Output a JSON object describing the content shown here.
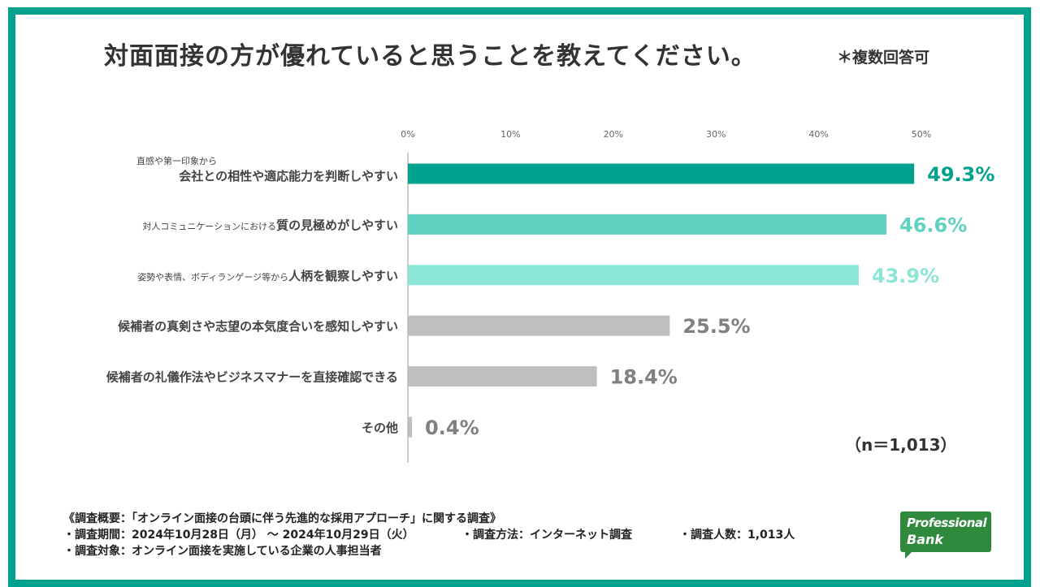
{
  "title": "対面面接の方が優れていると思うことを教えてください。",
  "note": "＊複数回答可",
  "sample_size": "（n＝1,013）",
  "chart_data": {
    "type": "bar",
    "orientation": "horizontal",
    "categories": [
      {
        "small": "直感や第一印象から",
        "main": "会社との相性や適応能力を判断しやすい"
      },
      {
        "small": "対人コミュニケーションにおける",
        "main": "質の見極めがしやすい"
      },
      {
        "small": "姿勢や表情、ボディランゲージ等から",
        "main": "人柄を観察しやすい"
      },
      {
        "small": "",
        "main": "候補者の真剣さや志望の本気度合いを感知しやすい"
      },
      {
        "small": "",
        "main": "候補者の礼儀作法やビジネスマナーを直接確認できる"
      },
      {
        "small": "",
        "main": "その他"
      }
    ],
    "values": [
      49.3,
      46.6,
      43.9,
      25.5,
      18.4,
      0.4
    ],
    "value_labels": [
      "49.3%",
      "46.6%",
      "43.9%",
      "25.5%",
      "18.4%",
      "0.4%"
    ],
    "colors": [
      "#00a28e",
      "#5fd2c0",
      "#8ce6d6",
      "#bfbfbf",
      "#bfbfbf",
      "#bfbfbf"
    ],
    "label_colors": [
      "#00a28e",
      "#5fd2c0",
      "#8ce6d6",
      "#808080",
      "#808080",
      "#808080"
    ],
    "xticks": [
      "0%",
      "10%",
      "20%",
      "30%",
      "40%",
      "50%"
    ],
    "xlim": [
      0,
      50
    ],
    "grid": false
  },
  "footer": {
    "line1": "《調査概要：「オンライン面接の台頭に伴う先進的な採用アプローチ」に関する調査》",
    "period": "・調査期間：2024年10月28日（月） ～ 2024年10月29日（火）",
    "method": "・調査方法：インターネット調査",
    "count": "・調査人数：1,013人",
    "target": "・調査対象：オンライン面接を実施している企業の人事担当者"
  },
  "logo": {
    "line1": "Professional",
    "line2": "Bank"
  }
}
